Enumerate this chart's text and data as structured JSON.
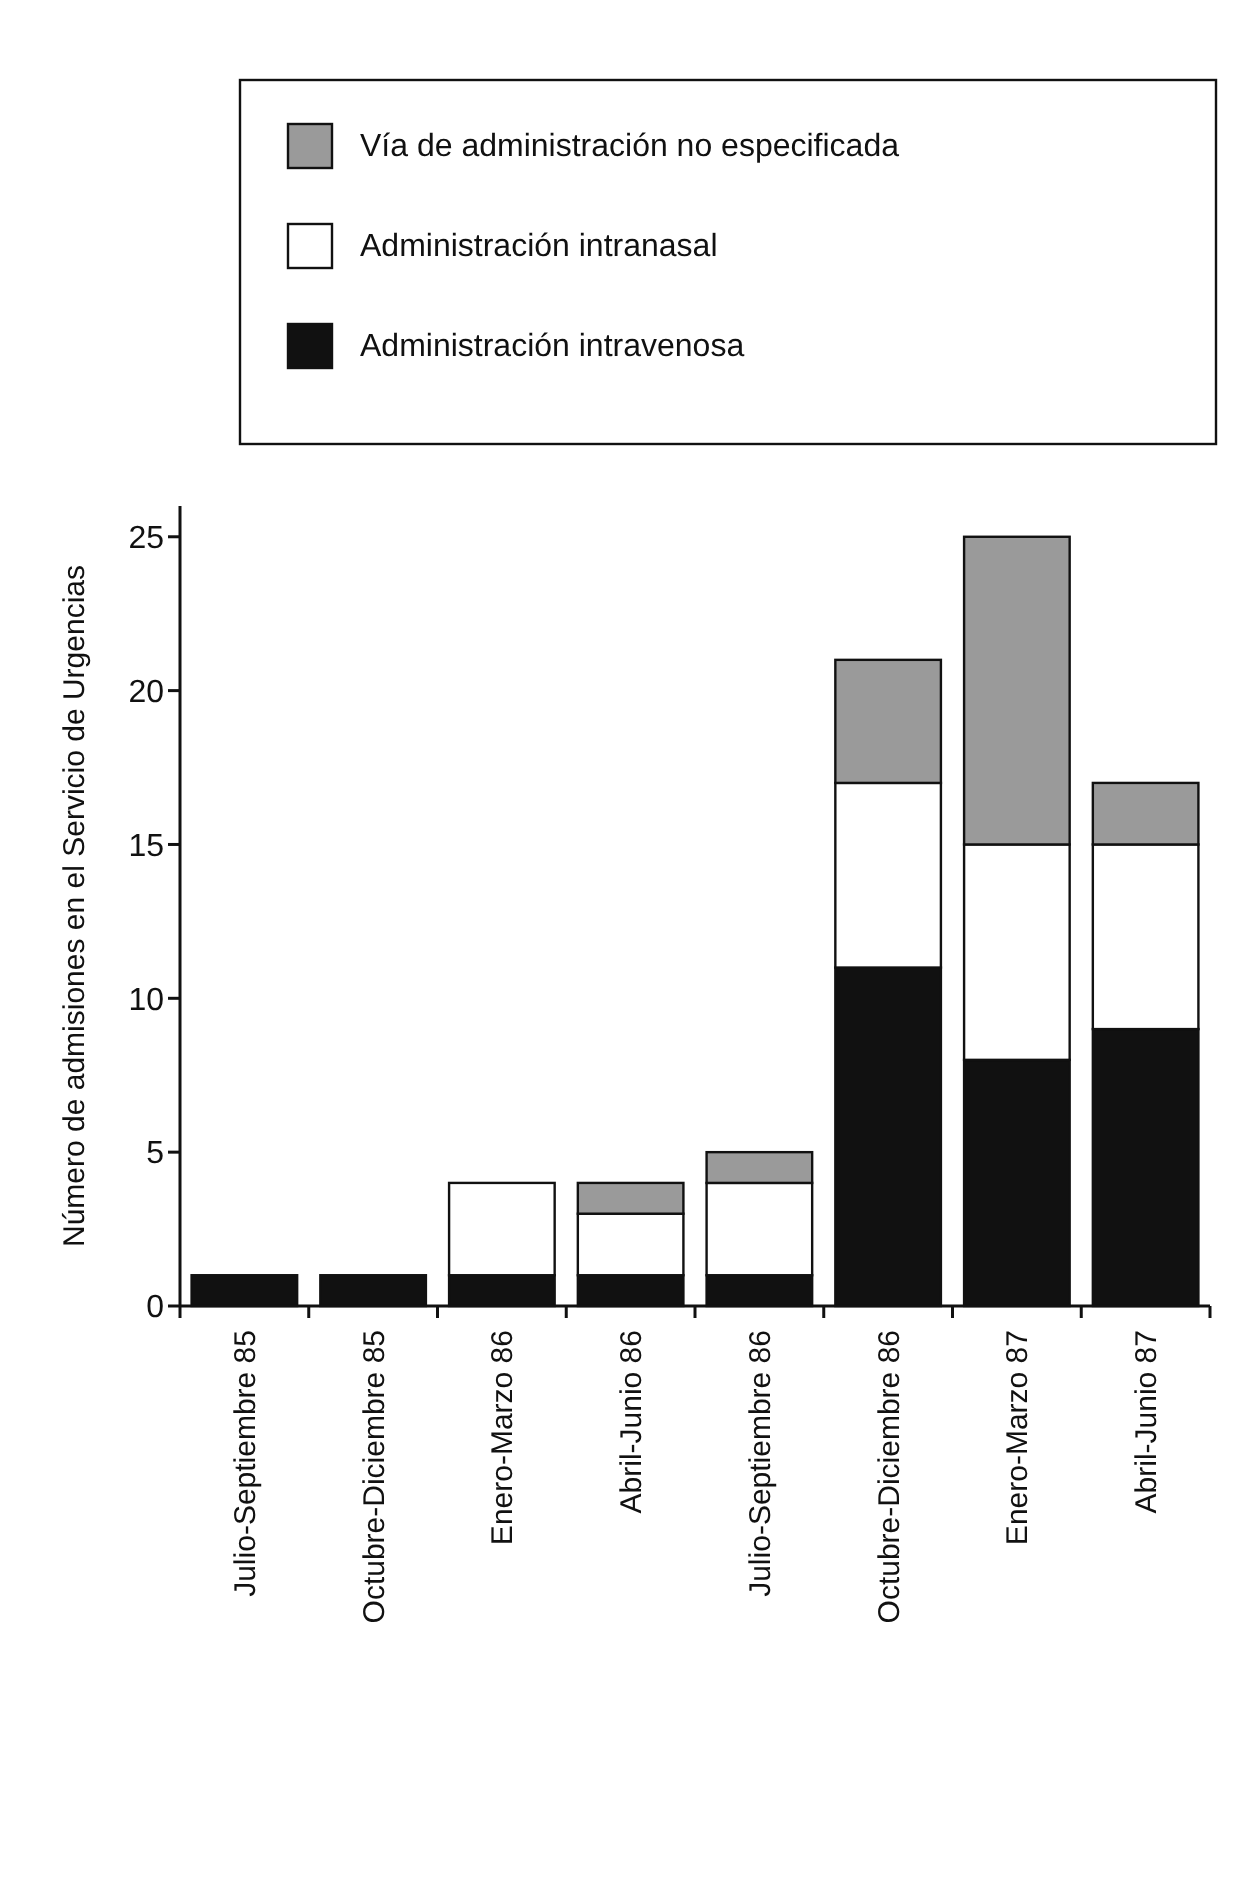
{
  "chart_data": {
    "type": "bar",
    "stacked": true,
    "ylabel": "Número de admisiones en el Servicio de Urgencias",
    "categories": [
      "Julio-Septiembre 85",
      "Octubre-Diciembre 85",
      "Enero-Marzo 86",
      "Abril-Junio 86",
      "Julio-Septiembre 86",
      "Octubre-Diciembre 86",
      "Enero-Marzo 87",
      "Abril-Junio 87"
    ],
    "series": [
      {
        "name": "Administración intravenosa",
        "color": "#111111",
        "values": [
          1,
          1,
          1,
          1,
          1,
          11,
          8,
          9
        ]
      },
      {
        "name": "Administración intranasal",
        "color": "#ffffff",
        "values": [
          0,
          0,
          3,
          2,
          3,
          6,
          7,
          6
        ]
      },
      {
        "name": "Vía de administración no especificada",
        "color": "#9a9a9a",
        "values": [
          0,
          0,
          0,
          1,
          1,
          4,
          10,
          2
        ]
      }
    ],
    "ylim": [
      0,
      26
    ],
    "yticks": [
      0,
      5,
      10,
      15,
      20,
      25
    ],
    "legend": "top",
    "grid": false
  }
}
